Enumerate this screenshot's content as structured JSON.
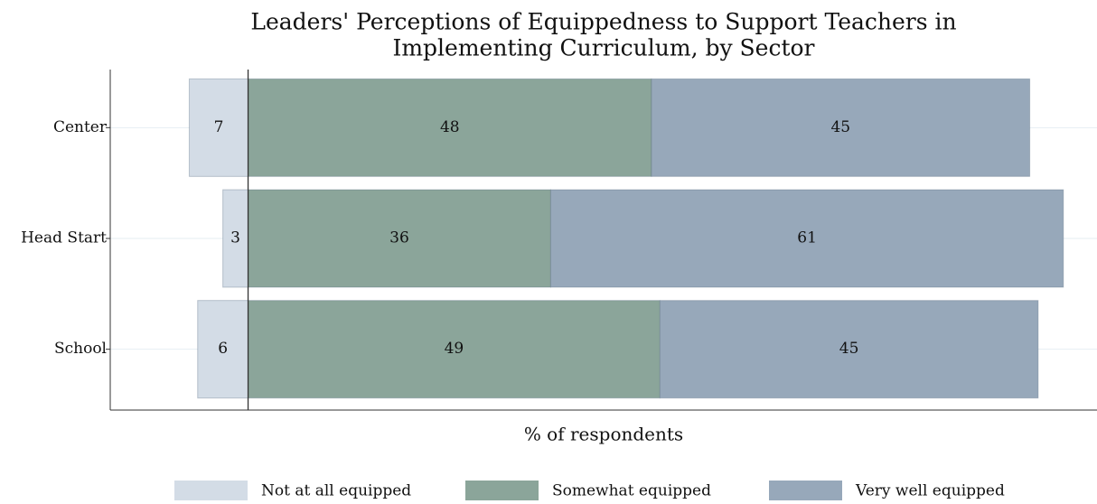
{
  "chart_data": {
    "type": "diverging_bar",
    "title": [
      "Leaders' Perceptions of Equippedness to Support Teachers in",
      "Implementing Curriculum, by Sector"
    ],
    "xlabel": "% of respondents",
    "categories": [
      "Center",
      "Head Start",
      "School"
    ],
    "series": [
      {
        "name": "Not at all equipped",
        "color": "#d3dce6",
        "values": [
          7,
          3,
          6
        ]
      },
      {
        "name": "Somewhat equipped",
        "color": "#8ba59a",
        "values": [
          48,
          36,
          49
        ]
      },
      {
        "name": "Very well equipped",
        "color": "#97a8ba",
        "values": [
          45,
          61,
          45
        ]
      }
    ],
    "xlim": [
      -16.4,
      101
    ],
    "grid": true,
    "legend": "bottom"
  }
}
